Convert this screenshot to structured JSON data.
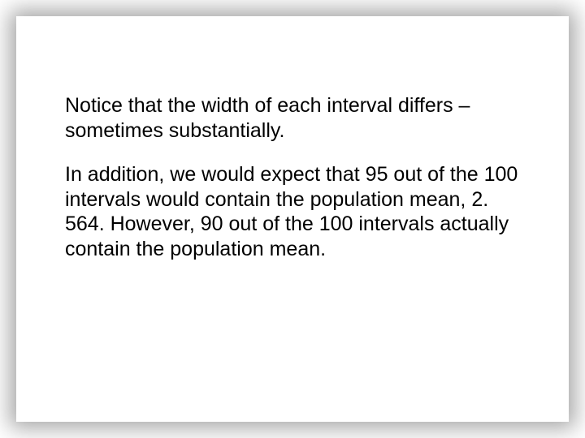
{
  "slide": {
    "background_color": "#ffffff",
    "shadow_color": "rgba(0,0,0,0.35)",
    "text_color": "#000000",
    "font_family": "Arial, Helvetica, sans-serif",
    "font_size_pt": 19,
    "line_height": 1.22,
    "paragraphs": [
      "Notice that the width of each interval differs – sometimes substantially.",
      "In addition, we would expect that 95 out of the 100 intervals would contain the population mean, 2. 564.  However, 90 out of the 100 intervals actually contain the population mean."
    ]
  }
}
